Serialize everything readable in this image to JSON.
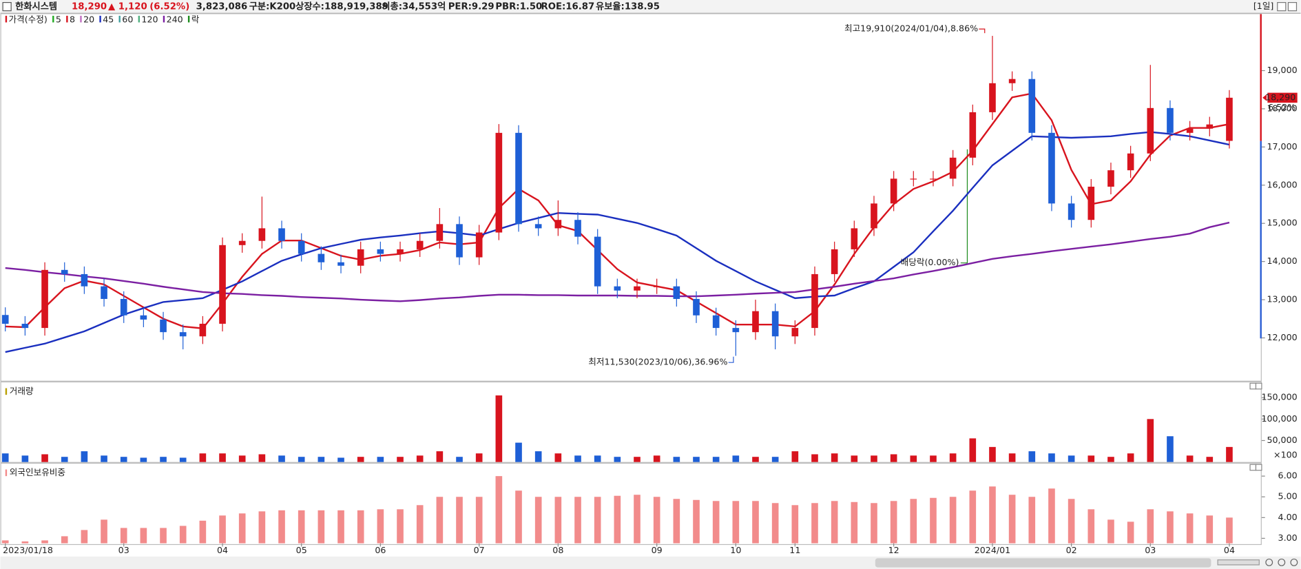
{
  "header": {
    "name": "한화시스템",
    "price": "18,290",
    "change": "▲ 1,120",
    "change_pct": "(6.52%)",
    "volume": "3,823,086",
    "stats": [
      "구분:K200",
      "상장수:188,919,389",
      "시총:34,553억",
      "PER:9.29",
      "PBR:1.50",
      "ROE:16.87",
      "유보율:138.95"
    ],
    "period": "[1일]"
  },
  "chart_data": [
    {
      "type": "candlestick",
      "categories": [
        "2023/01/18",
        null,
        null,
        null,
        null,
        null,
        "03",
        null,
        null,
        null,
        null,
        "04",
        null,
        null,
        null,
        "05",
        null,
        null,
        null,
        "06",
        null,
        null,
        null,
        null,
        "07",
        null,
        null,
        null,
        "08",
        null,
        null,
        null,
        null,
        "09",
        null,
        null,
        null,
        "10",
        null,
        null,
        "11",
        null,
        null,
        null,
        null,
        "12",
        null,
        null,
        null,
        null,
        "2024/01",
        null,
        null,
        null,
        "02",
        null,
        null,
        null,
        "03",
        null,
        null,
        null,
        "04"
      ],
      "series": [
        {
          "name": "가격(수정)",
          "color": "#d8141e",
          "down_color": "#1e5fd6",
          "open": [
            12600,
            12370,
            12260,
            13780,
            13670,
            13350,
            13020,
            12590,
            12480,
            12150,
            12040,
            12370,
            14430,
            14540,
            14870,
            14540,
            14200,
            13980,
            13890,
            14320,
            14200,
            14320,
            14540,
            14980,
            14110,
            14760,
            17370,
            14980,
            14870,
            15090,
            14650,
            13350,
            13240,
            13350,
            13350,
            13020,
            12590,
            12260,
            12150,
            12700,
            12040,
            12260,
            13670,
            14320,
            14870,
            15520,
            16170,
            16170,
            16170,
            16720,
            17910,
            18670,
            18780,
            17370,
            15520,
            15090,
            15960,
            16390,
            16830,
            18020,
            17370,
            17480,
            17160
          ],
          "high": [
            12800,
            12570,
            13980,
            13980,
            13870,
            13550,
            13220,
            12790,
            12680,
            12350,
            12570,
            14630,
            14740,
            15700,
            15070,
            14740,
            14400,
            14180,
            14520,
            14520,
            14520,
            14740,
            15400,
            15180,
            14960,
            17600,
            17570,
            15180,
            15600,
            15290,
            14850,
            13550,
            13550,
            13550,
            13550,
            13220,
            12790,
            12460,
            13000,
            12900,
            12460,
            13870,
            14520,
            15070,
            15720,
            16370,
            16370,
            16370,
            16920,
            18110,
            19910,
            18980,
            18980,
            17570,
            15720,
            16160,
            16590,
            17030,
            19150,
            18220,
            17680,
            17790,
            18490
          ],
          "low": [
            12170,
            12060,
            12060,
            13470,
            13150,
            12820,
            12390,
            12280,
            11950,
            11700,
            11840,
            12170,
            14230,
            14340,
            14340,
            14000,
            13780,
            13690,
            13690,
            14000,
            14000,
            14120,
            14340,
            13910,
            13910,
            14560,
            14780,
            14670,
            14670,
            14450,
            13150,
            13040,
            13040,
            13150,
            12820,
            12390,
            12060,
            11530,
            11950,
            11700,
            11840,
            12060,
            13470,
            14120,
            14670,
            15320,
            15970,
            15970,
            15970,
            16520,
            17710,
            18470,
            17170,
            15320,
            14890,
            14890,
            15760,
            16190,
            16630,
            17170,
            17170,
            17280,
            16960
          ],
          "close": [
            12370,
            12260,
            13780,
            13670,
            13350,
            13020,
            12590,
            12480,
            12150,
            12040,
            12370,
            14430,
            14540,
            14870,
            14540,
            14200,
            13980,
            13890,
            14320,
            14200,
            14320,
            14540,
            14980,
            14110,
            14760,
            17370,
            14980,
            14870,
            15090,
            14650,
            13350,
            13240,
            13350,
            13350,
            13020,
            12590,
            12260,
            12150,
            12700,
            12040,
            12260,
            13670,
            14320,
            14870,
            15520,
            16170,
            16170,
            16170,
            16720,
            17910,
            18670,
            18780,
            17370,
            15520,
            15090,
            15960,
            16390,
            16830,
            18020,
            17370,
            17480,
            17590,
            18290
          ]
        },
        {
          "name": "5",
          "color": "#22aa22"
        },
        {
          "name": "8",
          "color": "#d8141e",
          "values": [
            12300,
            12280,
            12800,
            13300,
            13500,
            13400,
            13100,
            12800,
            12500,
            12300,
            12250,
            12900,
            13600,
            14200,
            14550,
            14550,
            14350,
            14150,
            14050,
            14150,
            14200,
            14300,
            14500,
            14450,
            14500,
            15400,
            15900,
            15600,
            14950,
            14800,
            14300,
            13800,
            13450,
            13350,
            13250,
            12950,
            12650,
            12350,
            12350,
            12350,
            12300,
            12700,
            13400,
            14200,
            14900,
            15500,
            15900,
            16100,
            16350,
            16900,
            17600,
            18300,
            18400,
            17700,
            16400,
            15500,
            15600,
            16100,
            16800,
            17300,
            17500,
            17500,
            17600
          ]
        },
        {
          "name": "20",
          "color": "#c070c0"
        },
        {
          "name": "45",
          "color": "#1a2fbf",
          "values": [
            11630,
            11740,
            11850,
            12010,
            12170,
            12390,
            12610,
            12780,
            12940,
            12990,
            13040,
            13260,
            13480,
            13750,
            14020,
            14190,
            14350,
            14460,
            14570,
            14630,
            14680,
            14740,
            14790,
            14740,
            14680,
            14850,
            15010,
            15140,
            15270,
            15250,
            15230,
            15120,
            15010,
            14850,
            14680,
            14350,
            14020,
            13750,
            13480,
            13260,
            13040,
            13080,
            13110,
            13300,
            13480,
            13860,
            14240,
            14790,
            15330,
            15930,
            16520,
            16900,
            17280,
            17260,
            17240,
            17260,
            17280,
            17340,
            17390,
            17340,
            17280,
            17170,
            17060
          ]
        },
        {
          "name": "60",
          "color": "#40a0a0"
        },
        {
          "name": "120",
          "color": "#50b080"
        },
        {
          "name": "240",
          "color": "#7b1fa2",
          "values": [
            13830,
            13780,
            13720,
            13670,
            13610,
            13560,
            13490,
            13420,
            13340,
            13270,
            13200,
            13170,
            13150,
            13120,
            13100,
            13070,
            13050,
            13030,
            13000,
            12980,
            12960,
            12990,
            13030,
            13060,
            13100,
            13130,
            13130,
            13120,
            13120,
            13110,
            13110,
            13110,
            13100,
            13100,
            13090,
            13090,
            13110,
            13130,
            13160,
            13180,
            13200,
            13270,
            13340,
            13420,
            13490,
            13560,
            13660,
            13750,
            13850,
            13960,
            14070,
            14140,
            14200,
            14270,
            14330,
            14390,
            14450,
            14520,
            14590,
            14650,
            14730,
            14900,
            15020
          ]
        },
        {
          "name": "락",
          "color": "#1a8a1a"
        }
      ],
      "ylim": [
        10900,
        20480
      ],
      "yticks": [
        {
          "value": 12000,
          "label": "12,000"
        },
        {
          "value": 13000,
          "label": "13,000"
        },
        {
          "value": 14000,
          "label": "14,000"
        },
        {
          "value": 15000,
          "label": "15,000"
        },
        {
          "value": 16000,
          "label": "16,000"
        },
        {
          "value": 17000,
          "label": "17,000"
        },
        {
          "value": 18000,
          "label": "18,000"
        },
        {
          "value": 19000,
          "label": "19,000"
        }
      ],
      "annotations": [
        "최고19,910(2024/01/04),8.86%",
        "최저11,530(2023/10/06),36.96%",
        "배당락(0.00%)"
      ],
      "price_tag": [
        "18,290",
        "6.52%"
      ]
    },
    {
      "type": "bar",
      "title": "거래량",
      "unit_label": "×100",
      "values": [
        20000,
        15000,
        18000,
        12000,
        25000,
        15000,
        12000,
        10000,
        12000,
        10000,
        20000,
        20000,
        15000,
        18000,
        15000,
        12000,
        12000,
        10000,
        12000,
        12000,
        12000,
        15000,
        25000,
        12000,
        20000,
        155000,
        45000,
        25000,
        20000,
        15000,
        15000,
        12000,
        12000,
        15000,
        12000,
        12000,
        12000,
        15000,
        12000,
        12000,
        25000,
        18000,
        20000,
        15000,
        15000,
        18000,
        15000,
        15000,
        20000,
        55000,
        35000,
        20000,
        25000,
        20000,
        15000,
        15000,
        12000,
        20000,
        100000,
        60000,
        15000,
        12000,
        35000
      ],
      "ylim": [
        0,
        168000
      ],
      "yticks": [
        {
          "value": 50000,
          "label": "50,000"
        },
        {
          "value": 100000,
          "label": "100,000"
        },
        {
          "value": 150000,
          "label": "150,000"
        }
      ]
    },
    {
      "type": "bar",
      "title": "외국인보유비중",
      "color": "#f28b8b",
      "values": [
        2.9,
        2.85,
        2.9,
        3.1,
        3.4,
        3.9,
        3.5,
        3.5,
        3.5,
        3.6,
        3.85,
        4.1,
        4.2,
        4.3,
        4.35,
        4.35,
        4.35,
        4.35,
        4.35,
        4.4,
        4.4,
        4.6,
        5.0,
        5.0,
        5.0,
        6.0,
        5.3,
        5.0,
        5.0,
        5.0,
        5.0,
        5.05,
        5.1,
        5.0,
        4.9,
        4.85,
        4.8,
        4.8,
        4.8,
        4.7,
        4.6,
        4.7,
        4.8,
        4.75,
        4.7,
        4.8,
        4.9,
        4.95,
        5.0,
        5.3,
        5.5,
        5.1,
        5.0,
        5.4,
        4.9,
        4.4,
        3.9,
        3.8,
        4.4,
        4.3,
        4.2,
        4.1,
        4.0
      ],
      "ylim": [
        2.76,
        6.24
      ],
      "yticks": [
        {
          "value": 3,
          "label": "3.00"
        },
        {
          "value": 4,
          "label": "4.00"
        },
        {
          "value": 5,
          "label": "5.00"
        },
        {
          "value": 6,
          "label": "6.00"
        }
      ]
    }
  ]
}
